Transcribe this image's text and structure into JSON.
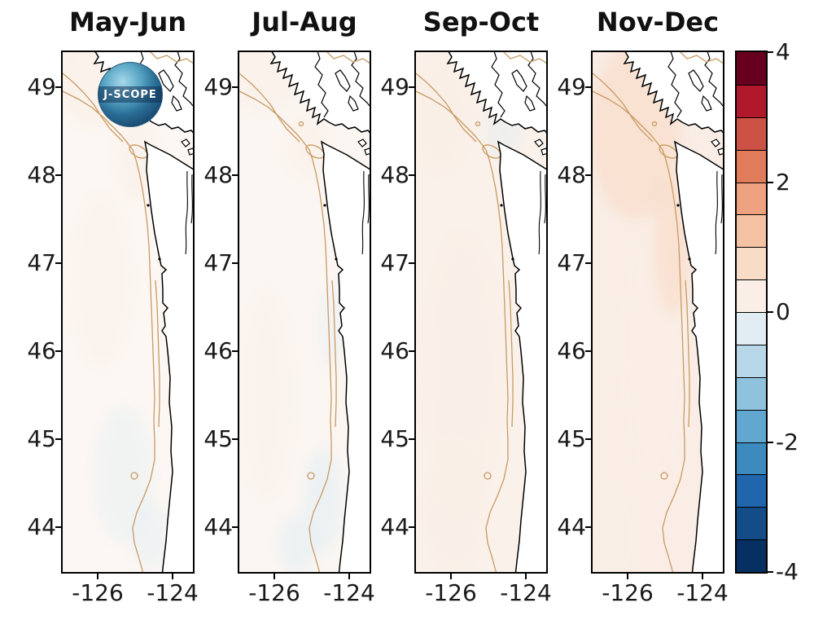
{
  "figure": {
    "background": "#ffffff",
    "logo": {
      "label": "J-SCOPE"
    },
    "panels": [
      {
        "title": "May-Jun"
      },
      {
        "title": "Jul-Aug"
      },
      {
        "title": "Sep-Oct"
      },
      {
        "title": "Nov-Dec"
      }
    ],
    "y_tick_labels": [
      "49",
      "48",
      "47",
      "46",
      "45",
      "44"
    ],
    "x_tick_labels": [
      "-126",
      "-124"
    ],
    "colorbar_tick_labels": [
      "4",
      "2",
      "0",
      "-2",
      "-4"
    ]
  },
  "chart_data": {
    "type": "heatmap",
    "description": "Four-panel coastal ocean map figure (Vancouver Island / Washington / Oregon coast) showing bimonthly anomaly fields for May-Jun, Jul-Aug, Sep-Oct and Nov-Dec on a diverging red-blue scale from -4 to 4. Anomalies are weak (about -0.5 to +0.5): faint warm shading offshore that becomes broader and slightly stronger in Sep-Oct and Nov-Dec, with small cool patches in the south in Jul-Aug. Black lines are the coastline, tan lines are shelf-break bathymetry contours.",
    "x": {
      "ticks": [
        -126,
        -124
      ],
      "range": [
        -126.93,
        -123.46
      ]
    },
    "y": {
      "ticks": [
        49,
        48,
        47,
        46,
        45,
        44
      ],
      "range": [
        43.49,
        49.4
      ]
    },
    "colorbar": {
      "range": [
        -4,
        4
      ],
      "step": 0.5,
      "ticks": [
        4,
        2,
        0,
        -2,
        -4
      ],
      "colors": [
        "#053061",
        "#134c86",
        "#2166ac",
        "#3c8abe",
        "#62a7cf",
        "#8fc2dd",
        "#b8d8e9",
        "#e2edf3",
        "#faeee6",
        "#f9dcc8",
        "#f5c2a4",
        "#eea27f",
        "#e07b5c",
        "#cd5246",
        "#b2182b",
        "#67001f"
      ]
    },
    "land_color": "#ffffff",
    "coast_color": "#000000",
    "isobath_color": "#c89a63",
    "panels": [
      {
        "title": "May-Jun",
        "base_value": 0.1,
        "base_color": "#fcf7f3",
        "anomaly_regions": [
          {
            "lon": -126.1,
            "lat": 49.1,
            "dlon": 1.0,
            "dlat": 0.55,
            "value": 0.4
          },
          {
            "lon": -124.95,
            "lat": 48.2,
            "dlon": 0.55,
            "dlat": 0.5,
            "value": 0.3
          },
          {
            "lon": -125.9,
            "lat": 46.8,
            "dlon": 0.8,
            "dlat": 1.0,
            "value": 0.15
          },
          {
            "lon": -125.3,
            "lat": 44.6,
            "dlon": 0.8,
            "dlat": 0.8,
            "value": -0.15
          },
          {
            "lon": -124.6,
            "lat": 43.9,
            "dlon": 0.5,
            "dlat": 0.4,
            "value": -0.2
          }
        ]
      },
      {
        "title": "Jul-Aug",
        "base_value": 0.1,
        "base_color": "#fbf6f2",
        "anomaly_regions": [
          {
            "lon": -126.3,
            "lat": 49.2,
            "dlon": 1.0,
            "dlat": 0.5,
            "value": 0.35
          },
          {
            "lon": -125.1,
            "lat": 48.35,
            "dlon": 0.6,
            "dlat": 0.4,
            "value": 0.25
          },
          {
            "lon": -126.2,
            "lat": 45.5,
            "dlon": 0.7,
            "dlat": 1.2,
            "value": 0.15
          },
          {
            "lon": -124.7,
            "lat": 44.3,
            "dlon": 0.5,
            "dlat": 0.6,
            "value": -0.4
          },
          {
            "lon": -125.4,
            "lat": 43.8,
            "dlon": 0.5,
            "dlat": 0.35,
            "value": -0.3
          },
          {
            "lon": -124.5,
            "lat": 46.3,
            "dlon": 0.3,
            "dlat": 0.5,
            "value": -0.1
          }
        ]
      },
      {
        "title": "Sep-Oct",
        "base_value": 0.2,
        "base_color": "#faf1ea",
        "anomaly_regions": [
          {
            "lon": -125.7,
            "lat": 45.8,
            "dlon": 1.1,
            "dlat": 1.6,
            "value": 0.45
          },
          {
            "lon": -126.3,
            "lat": 48.7,
            "dlon": 0.9,
            "dlat": 0.7,
            "value": 0.35
          },
          {
            "lon": -125.9,
            "lat": 44.2,
            "dlon": 0.8,
            "dlat": 0.7,
            "value": 0.3
          },
          {
            "lon": -124.6,
            "lat": 48.5,
            "dlon": 0.5,
            "dlat": 0.3,
            "value": -0.2
          }
        ]
      },
      {
        "title": "Nov-Dec",
        "base_value": 0.3,
        "base_color": "#f9ede5",
        "anomaly_regions": [
          {
            "lon": -125.8,
            "lat": 48.5,
            "dlon": 1.2,
            "dlat": 1.0,
            "value": 0.5
          },
          {
            "lon": -125.3,
            "lat": 46.0,
            "dlon": 1.0,
            "dlat": 1.5,
            "value": 0.45
          },
          {
            "lon": -124.8,
            "lat": 47.2,
            "dlon": 0.5,
            "dlat": 0.8,
            "value": 0.5
          },
          {
            "lon": -126.4,
            "lat": 43.9,
            "dlon": 0.7,
            "dlat": 0.6,
            "value": 0.2
          }
        ]
      }
    ]
  }
}
